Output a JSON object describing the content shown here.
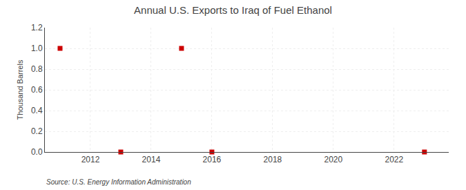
{
  "chart_data": {
    "type": "scatter",
    "title": "Annual U.S. Exports to Iraq of Fuel Ethanol",
    "y_label": "Thousand Barrels",
    "annotations": [
      "Source: U.S. Energy Information Administration"
    ],
    "x": [
      2011,
      2013,
      2015,
      2016,
      2023
    ],
    "values": [
      1.0,
      0.0,
      1.0,
      0.0,
      0.0
    ],
    "color": "#cc0000",
    "marker": "square",
    "xlim": [
      2010.5,
      2023.8
    ],
    "xticks": [
      2012,
      2014,
      2016,
      2018,
      2020,
      2022
    ],
    "ylim": [
      0,
      1.2
    ],
    "yticks": [
      {
        "value": 0,
        "label": "0.0"
      },
      0.2,
      0.4,
      0.6,
      0.8,
      {
        "value": 1,
        "label": "1.0"
      },
      1.2
    ],
    "grid": true
  }
}
